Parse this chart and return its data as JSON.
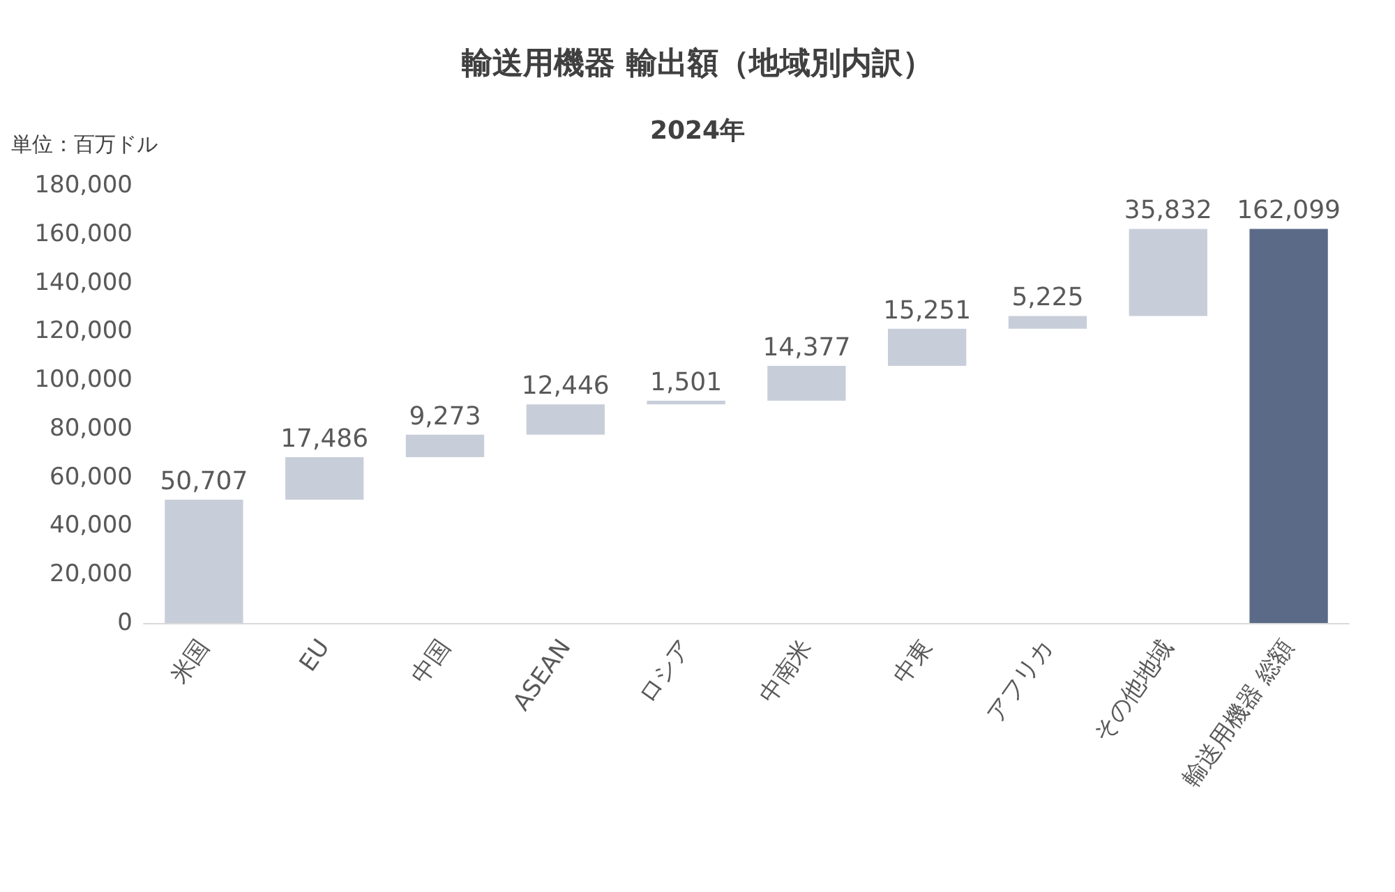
{
  "chart_data": {
    "type": "bar",
    "title": "輸送用機器 輸出額（地域別内訳）",
    "subtitle": "2024年",
    "ylabel": "単位：百万ドル",
    "categories": [
      "米国",
      "EU",
      "中国",
      "ASEAN",
      "ロシア",
      "中南米",
      "中東",
      "アフリカ",
      "その他地域",
      "輸送用機器 総額"
    ],
    "values": [
      50707,
      17486,
      9273,
      12446,
      1501,
      14377,
      15251,
      5225,
      35832,
      162099
    ],
    "value_labels": [
      "50,707",
      "17,486",
      "9,273",
      "12,446",
      "1,501",
      "14,377",
      "15,251",
      "5,225",
      "35,832",
      "162,099"
    ],
    "base": [
      0,
      50707,
      68193,
      77466,
      89912,
      91413,
      105790,
      121041,
      126266,
      0
    ],
    "colors": [
      "#c8ced9",
      "#c8ced9",
      "#c8ced9",
      "#c8ced9",
      "#c8ced9",
      "#c8ced9",
      "#c8ced9",
      "#c8ced9",
      "#c8ced9",
      "#5b6b87"
    ],
    "ylim": [
      0,
      180000
    ],
    "yticks": [
      0,
      {
        "value": 20000,
        "label": "20,000"
      },
      {
        "value": 40000,
        "label": "40,000"
      },
      {
        "value": 60000,
        "label": "60,000"
      },
      {
        "value": 80000,
        "label": "80,000"
      },
      {
        "value": 100000,
        "label": "100,000"
      },
      {
        "value": 120000,
        "label": "120,000"
      },
      {
        "value": 140000,
        "label": "140,000"
      },
      {
        "value": 160000,
        "label": "160,000"
      },
      {
        "value": 180000,
        "label": "180,000"
      }
    ],
    "grid": false
  }
}
